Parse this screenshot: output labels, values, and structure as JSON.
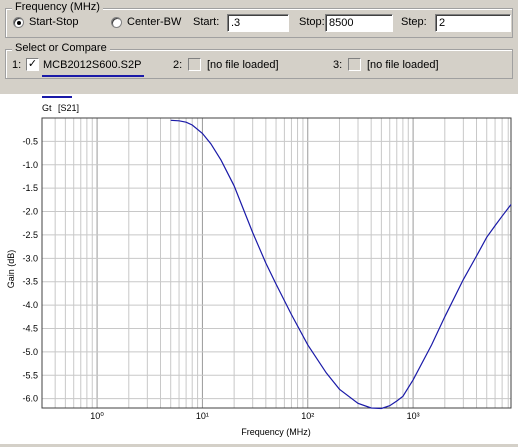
{
  "frequency": {
    "legend": "Frequency (MHz)",
    "mode_start_stop": "Start-Stop",
    "mode_center_bw": "Center-BW",
    "start_label": "Start:",
    "start_value": ".3",
    "stop_label": "Stop:",
    "stop_value": "8500",
    "step_label": "Step:",
    "step_value": "2",
    "selected_mode": "Start-Stop"
  },
  "select": {
    "legend": "Select or Compare",
    "slots": [
      {
        "num": "1:",
        "checked": true,
        "file": "MCB2012S600.S2P"
      },
      {
        "num": "2:",
        "checked": false,
        "file": "[no file loaded]"
      },
      {
        "num": "3:",
        "checked": false,
        "file": "[no file loaded]"
      }
    ]
  },
  "chart_legend": {
    "gt": "Gt",
    "s21": "[S21]",
    "line_color": "#1a1aa8"
  },
  "chart_data": {
    "type": "line",
    "xscale": "log",
    "xlabel": "Frequency (MHz)",
    "ylabel": "Gain (dB)",
    "xlim": [
      0.3,
      8500
    ],
    "ylim": [
      -6.2,
      0
    ],
    "x_tick_labels": [
      "10⁰",
      "10¹",
      "10²",
      "10³"
    ],
    "y_tick_labels": [
      "-0.5",
      "-1.0",
      "-1.5",
      "-2.0",
      "-2.5",
      "-3.0",
      "-3.5",
      "-4.0",
      "-4.5",
      "-5.0",
      "-5.5",
      "-6.0"
    ],
    "grid": true,
    "series": [
      {
        "label": "Gt [S21]",
        "x": [
          5,
          6,
          7,
          8,
          10,
          12,
          15,
          20,
          25,
          30,
          40,
          50,
          70,
          100,
          150,
          200,
          300,
          400,
          500,
          600,
          700,
          800,
          1000,
          1500,
          2000,
          3000,
          4000,
          5000,
          6000,
          7000,
          8500
        ],
        "y": [
          -0.05,
          -0.06,
          -0.09,
          -0.15,
          -0.33,
          -0.55,
          -0.9,
          -1.45,
          -2.0,
          -2.45,
          -3.1,
          -3.55,
          -4.2,
          -4.85,
          -5.45,
          -5.8,
          -6.1,
          -6.2,
          -6.21,
          -6.15,
          -6.05,
          -5.95,
          -5.6,
          -4.85,
          -4.25,
          -3.45,
          -2.95,
          -2.55,
          -2.3,
          -2.1,
          -1.85
        ]
      }
    ]
  }
}
